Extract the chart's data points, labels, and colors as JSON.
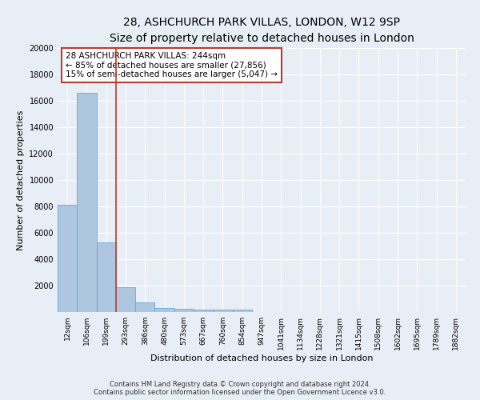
{
  "title": "28, ASHCHURCH PARK VILLAS, LONDON, W12 9SP",
  "subtitle": "Size of property relative to detached houses in London",
  "xlabel": "Distribution of detached houses by size in London",
  "ylabel": "Number of detached properties",
  "bar_labels": [
    "12sqm",
    "106sqm",
    "199sqm",
    "293sqm",
    "386sqm",
    "480sqm",
    "573sqm",
    "667sqm",
    "760sqm",
    "854sqm",
    "947sqm",
    "1041sqm",
    "1134sqm",
    "1228sqm",
    "1321sqm",
    "1415sqm",
    "1508sqm",
    "1602sqm",
    "1695sqm",
    "1789sqm",
    "1882sqm"
  ],
  "bar_values": [
    8100,
    16600,
    5300,
    1850,
    700,
    310,
    220,
    190,
    175,
    160,
    0,
    0,
    0,
    0,
    0,
    0,
    0,
    0,
    0,
    0,
    0
  ],
  "bar_color": "#aec6e0",
  "bar_edge_color": "#6aaad4",
  "vline_x": 2.5,
  "vline_color": "#c0392b",
  "annotation_text": "28 ASHCHURCH PARK VILLAS: 244sqm\n← 85% of detached houses are smaller (27,856)\n15% of semi-detached houses are larger (5,047) →",
  "annotation_box_color": "#ffffff",
  "annotation_box_edge": "#c0392b",
  "ylim": [
    0,
    20000
  ],
  "yticks": [
    0,
    2000,
    4000,
    6000,
    8000,
    10000,
    12000,
    14000,
    16000,
    18000,
    20000
  ],
  "footer": "Contains HM Land Registry data © Crown copyright and database right 2024.\nContains public sector information licensed under the Open Government Licence v3.0.",
  "background_color": "#e8eef5",
  "grid_color": "#ffffff",
  "title_fontsize": 10,
  "subtitle_fontsize": 9,
  "label_fontsize": 8,
  "tick_fontsize": 7,
  "annot_fontsize": 7.5,
  "footer_fontsize": 6
}
